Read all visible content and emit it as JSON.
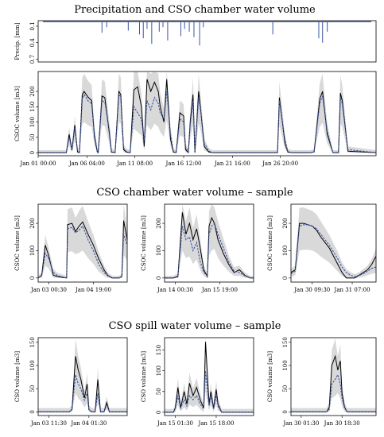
{
  "sections": {
    "precip_title": "Precipitation and CSO chamber water volume",
    "chamber_title": "CSO chamber water volume – sample",
    "spill_title": "CSO spill water volume – sample"
  },
  "chart_data": [
    {
      "id": "precip",
      "type": "bar",
      "title": "Precipitation and CSO chamber water volume",
      "ylabel": "Precip. [mm]",
      "ylim": [
        0.75,
        0
      ],
      "yticks": [
        "0.1",
        "0.4",
        "0.7"
      ],
      "inverted_y": true,
      "xlim": [
        0,
        36
      ],
      "grid": false,
      "x": [
        6.8,
        7.3,
        9.6,
        10.8,
        11.2,
        11.6,
        12.1,
        12.9,
        13.3,
        13.8,
        15.2,
        15.6,
        16.1,
        16.6,
        17.2,
        17.6,
        25.0,
        29.9,
        30.3,
        30.8
      ],
      "values": [
        0.22,
        0.12,
        0.18,
        0.25,
        0.32,
        0.15,
        0.42,
        0.2,
        0.12,
        0.36,
        0.28,
        0.15,
        0.2,
        0.3,
        0.45,
        0.12,
        0.25,
        0.32,
        0.4,
        0.2
      ],
      "color": "#3b55a5"
    },
    {
      "id": "overview",
      "type": "line",
      "ylabel": "CSOC volume [m3]",
      "ylim": [
        -10,
        265
      ],
      "yticks": [
        0,
        50,
        100,
        150,
        200
      ],
      "xlim": [
        0,
        36
      ],
      "xtick_positions": [
        0,
        5.2,
        10.3,
        15.5,
        20.7,
        25.8
      ],
      "xticks": [
        "Jan 01 00:00",
        "Jan 06 04:00",
        "Jan 11 08:00",
        "Jan 16 12:00",
        "Jan 21 16:00",
        "Jan 26 20:00"
      ],
      "band_color": "#d9d9d9",
      "series": [
        {
          "role": "observed",
          "color": "#000000",
          "x": [
            0,
            3.0,
            3.3,
            3.6,
            3.9,
            4.2,
            4.4,
            4.7,
            4.9,
            5.3,
            5.7,
            6.0,
            6.3,
            6.4,
            6.8,
            7.1,
            7.6,
            7.8,
            8.2,
            8.6,
            8.8,
            9.1,
            9.4,
            9.8,
            10.2,
            10.6,
            11.0,
            11.3,
            11.6,
            12.0,
            12.4,
            12.8,
            13.0,
            13.4,
            13.7,
            14.1,
            14.4,
            14.7,
            15.1,
            15.5,
            15.7,
            16.0,
            16.2,
            16.5,
            16.7,
            17.1,
            17.3,
            17.7,
            18.2,
            18.6,
            19.0,
            22.0,
            23.0,
            24.0,
            25.0,
            25.5,
            25.7,
            26.3,
            26.6,
            27.0,
            27.3,
            28.0,
            28.4,
            29.0,
            29.4,
            30.0,
            30.3,
            30.8,
            31.4,
            32.0,
            32.2,
            32.4,
            33.0,
            36.0
          ],
          "values": [
            0,
            0,
            60,
            8,
            90,
            2,
            0,
            190,
            200,
            182,
            170,
            52,
            2,
            0,
            185,
            180,
            60,
            2,
            0,
            200,
            190,
            10,
            2,
            0,
            205,
            215,
            150,
            20,
            240,
            200,
            230,
            200,
            150,
            100,
            240,
            45,
            2,
            0,
            130,
            120,
            10,
            0,
            100,
            190,
            0,
            200,
            145,
            20,
            2,
            0,
            0,
            0,
            0,
            0,
            0,
            0,
            180,
            30,
            2,
            0,
            0,
            0,
            0,
            0,
            2,
            175,
            200,
            60,
            0,
            0,
            195,
            170,
            5,
            0
          ]
        },
        {
          "role": "predicted",
          "color": "#3b55a5",
          "x": [
            0,
            3.0,
            3.3,
            3.6,
            3.9,
            4.2,
            4.4,
            4.7,
            4.9,
            5.3,
            5.7,
            6.0,
            6.3,
            6.4,
            6.8,
            7.1,
            7.6,
            7.8,
            8.2,
            8.6,
            8.8,
            9.1,
            9.4,
            9.8,
            10.2,
            10.6,
            11.0,
            11.3,
            11.6,
            12.0,
            12.4,
            12.8,
            13.0,
            13.4,
            13.7,
            14.1,
            14.4,
            14.7,
            15.1,
            15.5,
            15.7,
            16.0,
            16.2,
            16.5,
            16.7,
            17.1,
            17.3,
            17.7,
            18.2,
            18.6,
            19.0,
            22.0,
            23.0,
            24.0,
            25.0,
            25.5,
            25.7,
            26.3,
            26.6,
            27.0,
            27.3,
            28.0,
            28.4,
            29.0,
            29.4,
            30.0,
            30.3,
            30.8,
            31.4,
            32.0,
            32.2,
            32.4,
            33.0,
            36.0
          ],
          "values": [
            0,
            0,
            50,
            10,
            80,
            5,
            0,
            175,
            190,
            170,
            160,
            60,
            5,
            0,
            170,
            165,
            70,
            5,
            0,
            190,
            180,
            15,
            4,
            0,
            150,
            130,
            110,
            40,
            170,
            140,
            180,
            160,
            130,
            110,
            200,
            60,
            5,
            0,
            110,
            100,
            20,
            0,
            90,
            170,
            5,
            180,
            140,
            30,
            5,
            0,
            0,
            0,
            0,
            0,
            0,
            0,
            170,
            40,
            4,
            0,
            0,
            0,
            0,
            0,
            3,
            160,
            185,
            70,
            0,
            0,
            180,
            160,
            10,
            0
          ]
        }
      ]
    },
    {
      "id": "chamber_1",
      "type": "line",
      "ylabel": "CSOC volume [m3]",
      "ylim": [
        -15,
        270
      ],
      "yticks": [
        0,
        100,
        200
      ],
      "xlim": [
        0,
        1
      ],
      "xtick_positions": [
        0.12,
        0.62
      ],
      "xticks": [
        "Jan 03 00:30",
        "Jan 04 19:00"
      ],
      "series": [
        {
          "role": "observed",
          "color": "#000000",
          "x": [
            0,
            0.04,
            0.08,
            0.12,
            0.17,
            0.22,
            0.27,
            0.32,
            0.33,
            0.38,
            0.42,
            0.46,
            0.5,
            0.56,
            0.62,
            0.68,
            0.74,
            0.78,
            0.83,
            0.88,
            0.91,
            0.94,
            0.96,
            1.0
          ],
          "values": [
            0,
            10,
            120,
            80,
            10,
            5,
            2,
            0,
            195,
            200,
            170,
            190,
            205,
            160,
            120,
            70,
            30,
            10,
            0,
            0,
            0,
            5,
            210,
            140
          ]
        },
        {
          "role": "predicted",
          "color": "#3b55a5",
          "x": [
            0,
            0.04,
            0.08,
            0.12,
            0.17,
            0.22,
            0.27,
            0.32,
            0.33,
            0.38,
            0.42,
            0.46,
            0.5,
            0.56,
            0.62,
            0.68,
            0.74,
            0.78,
            0.83,
            0.88,
            0.91,
            0.94,
            0.96,
            1.0
          ],
          "values": [
            0,
            8,
            90,
            70,
            20,
            8,
            4,
            0,
            180,
            185,
            165,
            175,
            190,
            140,
            100,
            50,
            20,
            8,
            0,
            0,
            0,
            6,
            160,
            120
          ]
        }
      ]
    },
    {
      "id": "chamber_2",
      "type": "line",
      "ylabel": "CSOC volume [m3]",
      "ylim": [
        -15,
        270
      ],
      "yticks": [
        0,
        100,
        200
      ],
      "xlim": [
        0,
        1
      ],
      "xtick_positions": [
        0.12,
        0.62
      ],
      "xticks": [
        "Jan 14 00:30",
        "Jan 15 19:00"
      ],
      "series": [
        {
          "role": "observed",
          "color": "#000000",
          "x": [
            0,
            0.05,
            0.1,
            0.15,
            0.2,
            0.24,
            0.28,
            0.32,
            0.36,
            0.4,
            0.44,
            0.48,
            0.5,
            0.53,
            0.56,
            0.6,
            0.66,
            0.72,
            0.78,
            0.84,
            0.9,
            0.96,
            1.0
          ],
          "values": [
            0,
            0,
            0,
            5,
            240,
            160,
            200,
            140,
            180,
            110,
            30,
            5,
            190,
            220,
            200,
            140,
            90,
            50,
            20,
            30,
            10,
            0,
            0
          ]
        },
        {
          "role": "predicted",
          "color": "#3b55a5",
          "x": [
            0,
            0.05,
            0.1,
            0.15,
            0.2,
            0.24,
            0.28,
            0.32,
            0.36,
            0.4,
            0.44,
            0.48,
            0.5,
            0.53,
            0.56,
            0.6,
            0.66,
            0.72,
            0.78,
            0.84,
            0.9,
            0.96,
            1.0
          ],
          "values": [
            0,
            0,
            0,
            8,
            190,
            140,
            150,
            100,
            130,
            60,
            20,
            8,
            160,
            190,
            200,
            160,
            110,
            60,
            25,
            20,
            8,
            0,
            0
          ]
        }
      ]
    },
    {
      "id": "chamber_3",
      "type": "line",
      "ylabel": "CSOC volume [m3]",
      "ylim": [
        -15,
        270
      ],
      "yticks": [
        0,
        100,
        200
      ],
      "xlim": [
        0,
        1
      ],
      "xtick_positions": [
        0.25,
        0.72
      ],
      "xticks": [
        "Jan 30 09:30",
        "Jan 31 07:00"
      ],
      "series": [
        {
          "role": "observed",
          "color": "#000000",
          "x": [
            0,
            0.05,
            0.1,
            0.15,
            0.2,
            0.25,
            0.3,
            0.35,
            0.4,
            0.45,
            0.5,
            0.55,
            0.6,
            0.65,
            0.7,
            0.75,
            0.8,
            0.85,
            0.9,
            0.95,
            1.0
          ],
          "values": [
            20,
            30,
            200,
            200,
            195,
            190,
            175,
            150,
            130,
            110,
            80,
            50,
            20,
            0,
            0,
            0,
            10,
            20,
            30,
            50,
            80
          ]
        },
        {
          "role": "predicted",
          "color": "#3b55a5",
          "x": [
            0,
            0.05,
            0.1,
            0.15,
            0.2,
            0.25,
            0.3,
            0.35,
            0.4,
            0.45,
            0.5,
            0.55,
            0.6,
            0.65,
            0.7,
            0.75,
            0.8,
            0.85,
            0.9,
            0.95,
            1.0
          ],
          "values": [
            15,
            25,
            190,
            195,
            195,
            190,
            180,
            160,
            140,
            120,
            95,
            70,
            40,
            20,
            10,
            5,
            10,
            15,
            25,
            35,
            40
          ]
        }
      ]
    },
    {
      "id": "spill_1",
      "type": "line",
      "ylabel": "CSO volume [m3]",
      "ylim": [
        -8,
        160
      ],
      "yticks": [
        0,
        50,
        100,
        150
      ],
      "xlim": [
        0,
        1
      ],
      "xtick_positions": [
        0.12,
        0.57
      ],
      "xticks": [
        "Jan 03 11:30",
        "Jan 04 01:30"
      ],
      "series": [
        {
          "role": "observed",
          "color": "#000000",
          "x": [
            0,
            0.35,
            0.38,
            0.42,
            0.45,
            0.48,
            0.52,
            0.55,
            0.57,
            0.6,
            0.64,
            0.67,
            0.7,
            0.74,
            0.77,
            0.8,
            1.0
          ],
          "values": [
            0,
            0,
            5,
            120,
            90,
            70,
            30,
            60,
            5,
            0,
            0,
            70,
            0,
            0,
            20,
            0,
            0
          ]
        },
        {
          "role": "predicted",
          "color": "#3b55a5",
          "x": [
            0,
            0.35,
            0.38,
            0.42,
            0.45,
            0.48,
            0.52,
            0.55,
            0.57,
            0.6,
            0.64,
            0.67,
            0.7,
            0.74,
            0.77,
            0.8,
            1.0
          ],
          "values": [
            0,
            0,
            5,
            80,
            60,
            50,
            25,
            40,
            5,
            0,
            0,
            40,
            0,
            0,
            15,
            0,
            0
          ]
        }
      ]
    },
    {
      "id": "spill_2",
      "type": "line",
      "ylabel": "CSO volume [m3]",
      "ylim": [
        -8,
        180
      ],
      "yticks": [
        0,
        50,
        100,
        150
      ],
      "xlim": [
        0,
        1
      ],
      "xtick_positions": [
        0.12,
        0.58
      ],
      "xticks": [
        "Jan 15 01:30",
        "Jan 15 18:00"
      ],
      "series": [
        {
          "role": "observed",
          "color": "#000000",
          "x": [
            0,
            0.1,
            0.12,
            0.15,
            0.18,
            0.22,
            0.25,
            0.28,
            0.32,
            0.36,
            0.4,
            0.44,
            0.46,
            0.5,
            0.52,
            0.55,
            0.58,
            0.6,
            0.64,
            0.68,
            0.72,
            0.76,
            1.0
          ],
          "values": [
            0,
            0,
            10,
            60,
            10,
            50,
            20,
            70,
            40,
            60,
            30,
            10,
            170,
            20,
            50,
            10,
            55,
            20,
            0,
            0,
            0,
            0,
            0
          ]
        },
        {
          "role": "predicted",
          "color": "#3b55a5",
          "x": [
            0,
            0.1,
            0.12,
            0.15,
            0.18,
            0.22,
            0.25,
            0.28,
            0.32,
            0.36,
            0.4,
            0.44,
            0.46,
            0.5,
            0.52,
            0.55,
            0.58,
            0.6,
            0.64,
            0.68,
            0.72,
            0.76,
            1.0
          ],
          "values": [
            0,
            0,
            8,
            40,
            10,
            30,
            15,
            40,
            30,
            40,
            20,
            8,
            100,
            15,
            40,
            8,
            40,
            15,
            0,
            0,
            0,
            0,
            0
          ]
        }
      ]
    },
    {
      "id": "spill_3",
      "type": "line",
      "ylabel": "CSO volume [m3]",
      "ylim": [
        -8,
        160
      ],
      "yticks": [
        0,
        50,
        100,
        150
      ],
      "xlim": [
        0,
        1
      ],
      "xtick_positions": [
        0.12,
        0.6
      ],
      "xticks": [
        "Jan 30 01:30",
        "Jan 30 18:30"
      ],
      "series": [
        {
          "role": "observed",
          "color": "#000000",
          "x": [
            0,
            0.42,
            0.45,
            0.48,
            0.52,
            0.55,
            0.58,
            0.6,
            0.63,
            0.66,
            0.7,
            1.0
          ],
          "values": [
            0,
            0,
            10,
            100,
            120,
            90,
            110,
            40,
            10,
            0,
            0,
            0
          ]
        },
        {
          "role": "predicted",
          "color": "#3b55a5",
          "x": [
            0,
            0.42,
            0.45,
            0.48,
            0.52,
            0.55,
            0.58,
            0.6,
            0.63,
            0.66,
            0.7,
            1.0
          ],
          "values": [
            0,
            0,
            5,
            60,
            70,
            80,
            60,
            30,
            8,
            0,
            0,
            0
          ]
        }
      ]
    }
  ]
}
